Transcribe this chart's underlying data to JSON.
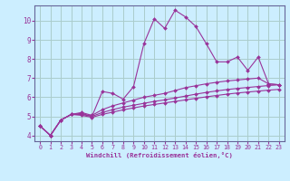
{
  "bg_color": "#cceeff",
  "grid_color": "#aacccc",
  "line_color": "#993399",
  "marker_color": "#993399",
  "xlabel": "Windchill (Refroidissement éolien,°C)",
  "xlim": [
    -0.5,
    23.5
  ],
  "ylim": [
    3.7,
    10.8
  ],
  "yticks": [
    4,
    5,
    6,
    7,
    8,
    9,
    10
  ],
  "xticks": [
    0,
    1,
    2,
    3,
    4,
    5,
    6,
    7,
    8,
    9,
    10,
    11,
    12,
    13,
    14,
    15,
    16,
    17,
    18,
    19,
    20,
    21,
    22,
    23
  ],
  "curve1_x": [
    0,
    1,
    2,
    3,
    4,
    5,
    6,
    7,
    8,
    9,
    10,
    11,
    12,
    13,
    14,
    15,
    16,
    17,
    18,
    19,
    20,
    21,
    22,
    23
  ],
  "curve1_y": [
    4.5,
    4.0,
    4.8,
    5.1,
    5.15,
    5.0,
    6.3,
    6.2,
    5.9,
    6.55,
    8.8,
    10.1,
    9.6,
    10.55,
    10.2,
    9.7,
    8.8,
    7.85,
    7.85,
    8.1,
    7.4,
    8.1,
    6.7,
    6.65
  ],
  "curve2_x": [
    0,
    1,
    2,
    3,
    4,
    5,
    6,
    7,
    8,
    9,
    10,
    11,
    12,
    13,
    14,
    15,
    16,
    17,
    18,
    19,
    20,
    21,
    22,
    23
  ],
  "curve2_y": [
    4.5,
    4.0,
    4.8,
    5.1,
    5.2,
    5.05,
    5.35,
    5.55,
    5.7,
    5.85,
    6.0,
    6.1,
    6.2,
    6.35,
    6.5,
    6.6,
    6.7,
    6.78,
    6.85,
    6.9,
    6.95,
    7.0,
    6.7,
    6.65
  ],
  "curve3_x": [
    0,
    1,
    2,
    3,
    4,
    5,
    6,
    7,
    8,
    9,
    10,
    11,
    12,
    13,
    14,
    15,
    16,
    17,
    18,
    19,
    20,
    21,
    22,
    23
  ],
  "curve3_y": [
    4.5,
    4.0,
    4.8,
    5.1,
    5.1,
    5.0,
    5.2,
    5.35,
    5.48,
    5.58,
    5.68,
    5.78,
    5.86,
    5.96,
    6.06,
    6.16,
    6.25,
    6.33,
    6.4,
    6.46,
    6.51,
    6.56,
    6.61,
    6.65
  ],
  "curve4_x": [
    0,
    1,
    2,
    3,
    4,
    5,
    6,
    7,
    8,
    9,
    10,
    11,
    12,
    13,
    14,
    15,
    16,
    17,
    18,
    19,
    20,
    21,
    22,
    23
  ],
  "curve4_y": [
    4.5,
    4.0,
    4.8,
    5.1,
    5.05,
    4.95,
    5.1,
    5.22,
    5.34,
    5.44,
    5.54,
    5.62,
    5.7,
    5.78,
    5.86,
    5.94,
    6.02,
    6.09,
    6.16,
    6.22,
    6.27,
    6.32,
    6.37,
    6.41
  ]
}
